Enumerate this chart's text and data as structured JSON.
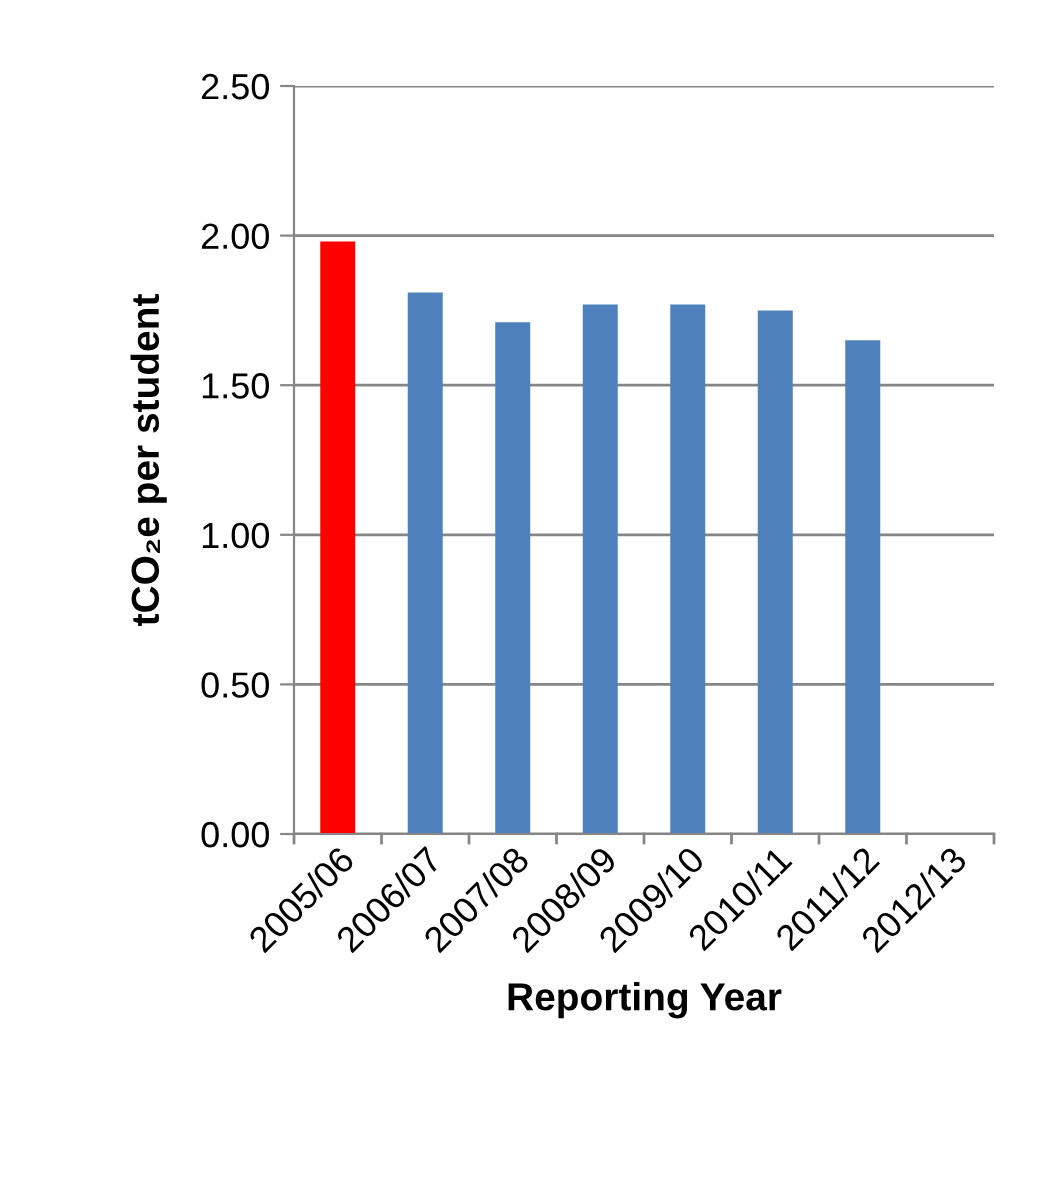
{
  "chart_data": {
    "type": "bar",
    "xlabel": "Reporting Year",
    "ylabel": "tCO₂e per student",
    "categories": [
      "2005/06",
      "2006/07",
      "2007/08",
      "2008/09",
      "2009/10",
      "2010/11",
      "2011/12",
      "2012/13"
    ],
    "values": [
      1.98,
      1.81,
      1.71,
      1.77,
      1.77,
      1.75,
      1.65,
      null
    ],
    "colors": [
      "#ff0000",
      "#4f81bd",
      "#4f81bd",
      "#4f81bd",
      "#4f81bd",
      "#4f81bd",
      "#4f81bd",
      "#4f81bd"
    ],
    "ylim": [
      0,
      2.5
    ],
    "yticks": [
      {
        "value": 0,
        "label": "0.00"
      },
      {
        "value": 0.5,
        "label": "0.50"
      },
      {
        "value": 1.0,
        "label": "1.00"
      },
      {
        "value": 1.5,
        "label": "1.50"
      },
      {
        "value": 2.0,
        "label": "2.00"
      },
      {
        "value": 2.5,
        "label": "2.50"
      }
    ],
    "grid": "y"
  }
}
